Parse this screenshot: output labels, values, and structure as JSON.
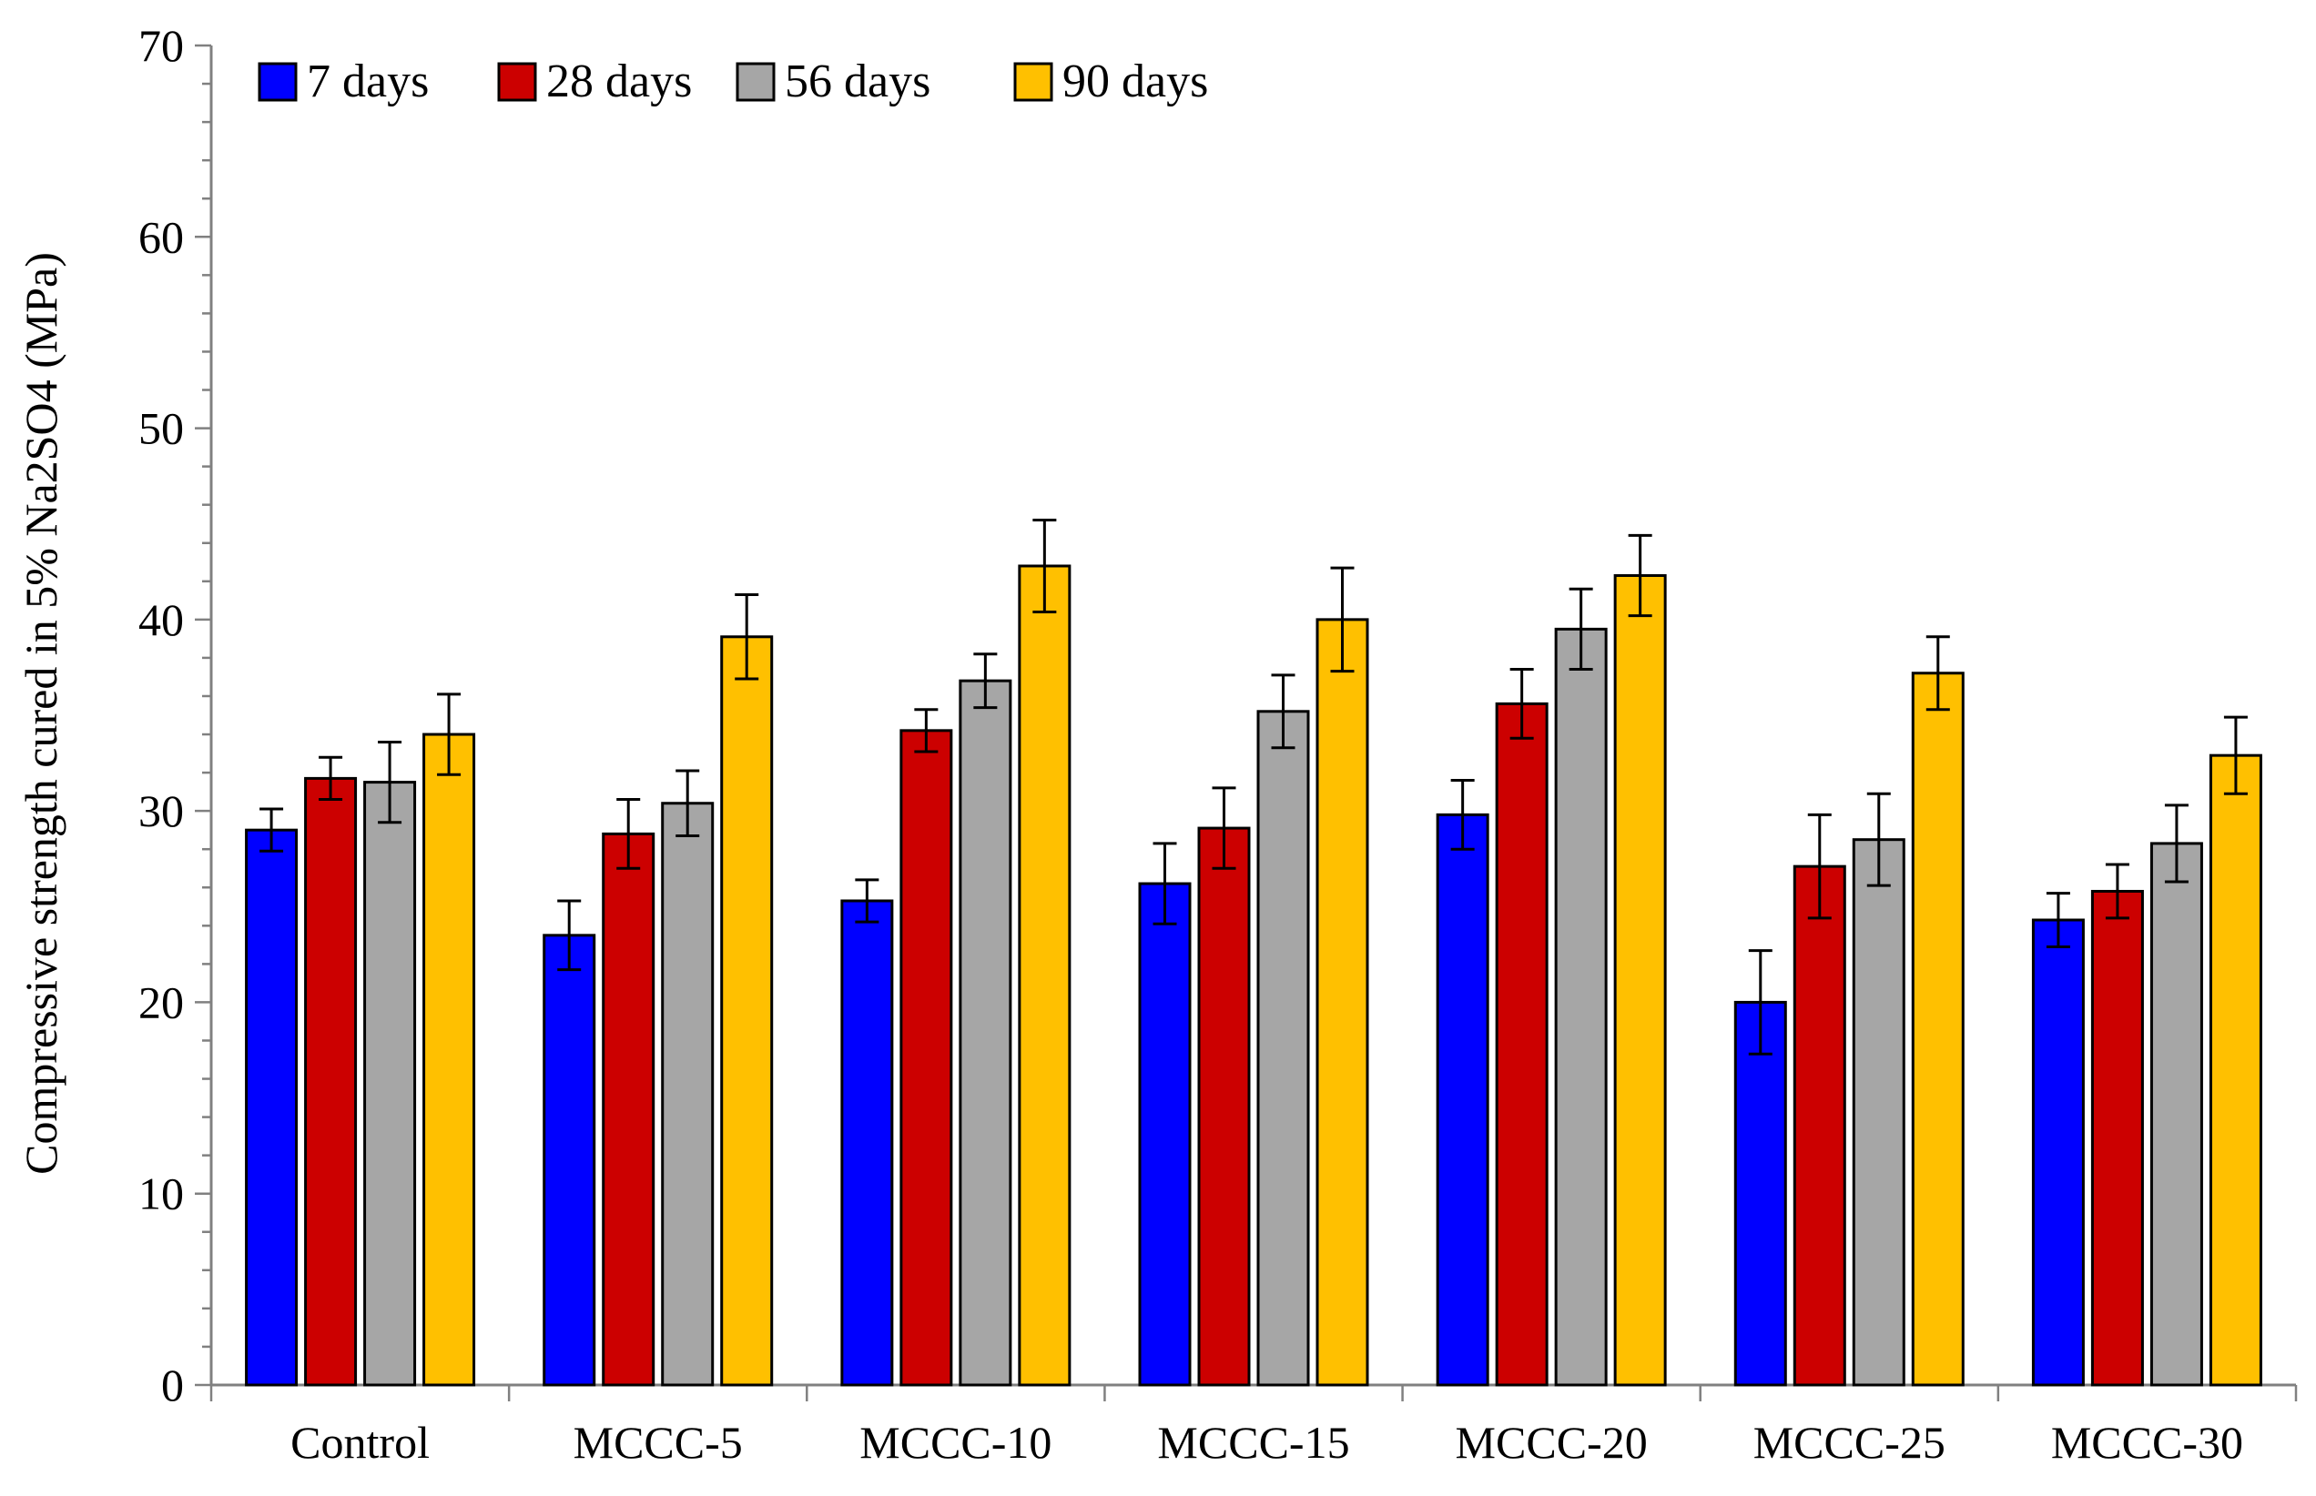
{
  "chart_data": {
    "type": "bar",
    "title": "",
    "xlabel": "",
    "ylabel": "Compressive strength cured in 5% Na2SO4 (MPa)",
    "ylim": [
      0,
      70
    ],
    "ytick_step": 10,
    "yticks": [
      "0",
      "10",
      "20",
      "30",
      "40",
      "50",
      "60",
      "70"
    ],
    "categories": [
      "Control",
      "MCCC-5",
      "MCCC-10",
      "MCCC-15",
      "MCCC-20",
      "MCCC-25",
      "MCCC-30"
    ],
    "legend_position": "top-left",
    "series": [
      {
        "name": "7 days",
        "color": "#0000ff",
        "values": [
          29.0,
          23.5,
          25.3,
          26.2,
          29.8,
          20.0,
          24.3
        ],
        "errors": [
          1.1,
          1.8,
          1.1,
          2.1,
          1.8,
          2.7,
          1.4
        ]
      },
      {
        "name": "28 days",
        "color": "#cc0000",
        "values": [
          31.7,
          28.8,
          34.2,
          29.1,
          35.6,
          27.1,
          25.8
        ],
        "errors": [
          1.1,
          1.8,
          1.1,
          2.1,
          1.8,
          2.7,
          1.4
        ]
      },
      {
        "name": "56 days",
        "color": "#a6a6a6",
        "values": [
          31.5,
          30.4,
          36.8,
          35.2,
          39.5,
          28.5,
          28.3
        ],
        "errors": [
          2.1,
          1.7,
          1.4,
          1.9,
          2.1,
          2.4,
          2.0
        ]
      },
      {
        "name": "90 days",
        "color": "#ffc000",
        "values": [
          34.0,
          39.1,
          42.8,
          40.0,
          42.3,
          37.2,
          32.9
        ],
        "errors": [
          2.1,
          2.2,
          2.4,
          2.7,
          2.1,
          1.9,
          2.0
        ]
      }
    ]
  }
}
